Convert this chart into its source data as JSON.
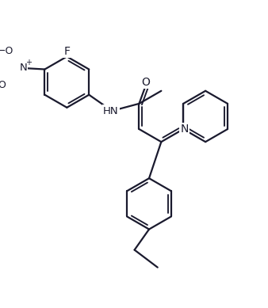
{
  "bg_color": "#ffffff",
  "line_color": "#1a1a2e",
  "line_width": 1.6,
  "dbo": 0.12,
  "figsize": [
    3.38,
    3.89
  ],
  "dpi": 100,
  "xlim": [
    0,
    10
  ],
  "ylim": [
    0,
    11.5
  ]
}
